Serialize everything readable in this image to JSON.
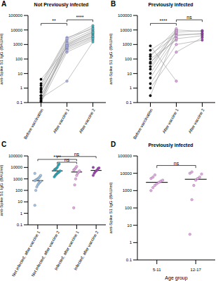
{
  "chart_data": [
    {
      "type": "line",
      "panel": "A",
      "title": "Not Previously infected",
      "y_label": "anti-Spike S1 IgG (BAU/ml)",
      "categories": [
        "Before vaccination",
        "After vaccine 1",
        "After vaccine 2"
      ],
      "colors": [
        "#000000",
        "#b0b4f0",
        "#3cb8c8"
      ],
      "series": [
        {
          "values": [
            0.1,
            300,
            2000
          ]
        },
        {
          "values": [
            0.2,
            500,
            3000
          ]
        },
        {
          "values": [
            0.3,
            800,
            5000
          ]
        },
        {
          "values": [
            0.15,
            1000,
            8000
          ]
        },
        {
          "values": [
            0.5,
            1500,
            10000
          ]
        },
        {
          "values": [
            1,
            2000,
            15000
          ]
        },
        {
          "values": [
            2,
            3000,
            12000
          ]
        },
        {
          "values": [
            4,
            600,
            4000
          ]
        },
        {
          "values": [
            0.8,
            700,
            3500
          ]
        },
        {
          "values": [
            0.3,
            400,
            2500
          ]
        },
        {
          "values": [
            0.2,
            3,
            1500
          ]
        },
        {
          "values": [
            0.12,
            900,
            6000
          ]
        },
        {
          "values": [
            0.6,
            1200,
            7000
          ]
        },
        {
          "values": [
            1.5,
            2500,
            20000
          ]
        }
      ],
      "ylim": [
        0.1,
        100000
      ],
      "yticks": [
        0.1,
        1,
        10,
        100,
        1000,
        10000,
        100000
      ],
      "log": "y",
      "comparisons": [
        {
          "from": "Before vaccination",
          "to": "After vaccine 1",
          "label": "**"
        },
        {
          "from": "After vaccine 1",
          "to": "After vaccine 2",
          "label": "****"
        }
      ]
    },
    {
      "type": "line",
      "panel": "B",
      "title": "Previously infected",
      "y_label": "anti-Spike S1 IgG (BAU/ml)",
      "categories": [
        "Before vaccination",
        "After vaccine 1",
        "After vaccine 2"
      ],
      "colors": [
        "#000000",
        "#e2a8e8",
        "#9a3fb0"
      ],
      "series": [
        {
          "values": [
            2,
            1000,
            2000
          ]
        },
        {
          "values": [
            5,
            3000,
            null
          ]
        },
        {
          "values": [
            10,
            5000,
            5000
          ]
        },
        {
          "values": [
            30,
            8000,
            null
          ]
        },
        {
          "values": [
            50,
            10000,
            8000
          ]
        },
        {
          "values": [
            100,
            2000,
            null
          ]
        },
        {
          "values": [
            200,
            4000,
            6000
          ]
        },
        {
          "values": [
            400,
            6000,
            null
          ]
        },
        {
          "values": [
            800,
            3,
            null
          ]
        },
        {
          "values": [
            1,
            300,
            3000
          ]
        },
        {
          "values": [
            0.3,
            7000,
            9000
          ]
        },
        {
          "values": [
            20,
            9000,
            null
          ]
        },
        {
          "values": [
            60,
            2500,
            4000
          ]
        },
        {
          "values": [
            150,
            12000,
            null
          ]
        }
      ],
      "ylim": [
        0.1,
        100000
      ],
      "yticks": [
        0.1,
        1,
        10,
        100,
        1000,
        10000,
        100000
      ],
      "log": "y",
      "comparisons": [
        {
          "from": "Before vaccination",
          "to": "After vaccine 1",
          "label": "****"
        },
        {
          "from": "After vaccine 1",
          "to": "After vaccine 2",
          "label": "ns"
        }
      ]
    },
    {
      "type": "scatter",
      "panel": "C",
      "y_label": "anti-Spike S1 IgG (BAU/ml)",
      "categories": [
        "Not infected, after vaccine 1",
        "Not infected, after vaccine 2",
        "Infected, after vaccine 1",
        "Infected, after vaccine 2"
      ],
      "colors": [
        "#9fc5e8",
        "#2aa7b8",
        "#e8a8e8",
        "#a040b8"
      ],
      "groups": [
        [
          5,
          100,
          200,
          300,
          400,
          500,
          600,
          700,
          800,
          900,
          1000,
          1200,
          1500,
          2000,
          3000
        ],
        [
          1500,
          2000,
          2500,
          3000,
          3500,
          4000,
          5000,
          6000,
          7000,
          8000,
          10000,
          15000,
          20000
        ],
        [
          3,
          300,
          1000,
          2000,
          3000,
          4000,
          5000,
          6000,
          7000,
          9000,
          12000
        ],
        [
          2000,
          3000,
          4000,
          5000,
          6000,
          8000,
          9000,
          10000
        ]
      ],
      "medians": [
        700,
        5000,
        4000,
        5500
      ],
      "ylim": [
        0.1,
        100000
      ],
      "yticks": [
        0.1,
        1,
        10,
        100,
        1000,
        10000,
        100000
      ],
      "log": "y",
      "comparisons": [
        {
          "from": "Not infected, after vaccine 2",
          "to": "Infected, after vaccine 1",
          "label": "ns"
        },
        {
          "from": "Not infected, after vaccine 1",
          "to": "Infected, after vaccine 1",
          "label": "****"
        },
        {
          "from": "Not infected, after vaccine 2",
          "to": "Infected, after vaccine 2",
          "label": "ns"
        }
      ]
    },
    {
      "type": "scatter",
      "panel": "D",
      "title": "Previously infected",
      "y_label": "anti-Spike S1 IgG (BAU/ml)",
      "x_label": "Age group",
      "categories": [
        "5-11",
        "12-17"
      ],
      "colors": [
        "#e8a8e8",
        "#e8a8e8"
      ],
      "groups": [
        [
          1000,
          1500,
          2000,
          2500,
          3000,
          3500,
          4000,
          5000,
          6000,
          8000
        ],
        [
          3,
          300,
          2000,
          4000,
          5000,
          6000,
          9000,
          10000,
          12000
        ]
      ],
      "medians": [
        3000,
        4500
      ],
      "ylim": [
        0.1,
        100000
      ],
      "yticks": [
        0.1,
        1,
        10,
        100,
        1000,
        10000,
        100000
      ],
      "log": "y",
      "comparisons": [
        {
          "from": "5-11",
          "to": "12-17",
          "label": "ns"
        }
      ]
    }
  ]
}
